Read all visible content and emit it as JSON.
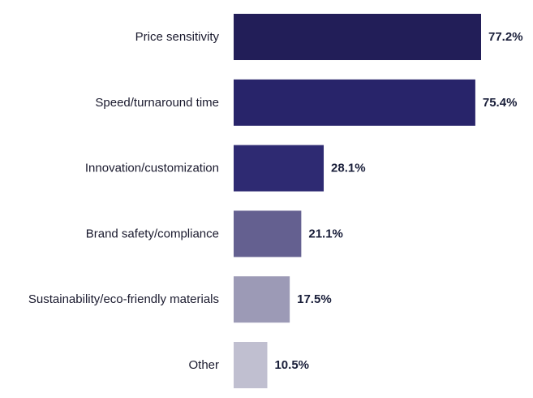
{
  "chart_data": {
    "type": "bar",
    "orientation": "horizontal",
    "title": "",
    "xlabel": "",
    "ylabel": "",
    "categories": [
      "Price sensitivity",
      "Speed/turnaround time",
      "Innovation/customization",
      "Brand safety/compliance",
      "Sustainability/eco-friendly materials",
      "Other"
    ],
    "values": [
      77.2,
      75.4,
      28.1,
      21.1,
      17.5,
      10.5
    ],
    "value_labels": [
      "77.2%",
      "75.4%",
      "28.1%",
      "21.1%",
      "17.5%",
      "10.5%"
    ],
    "unit": "%",
    "xlim": [
      0,
      100
    ],
    "grid": false,
    "legend": "none",
    "bar_colors": [
      "#221e58",
      "#28246a",
      "#2e2a72",
      "#646090",
      "#9c9ab6",
      "#c0bfd0"
    ]
  }
}
